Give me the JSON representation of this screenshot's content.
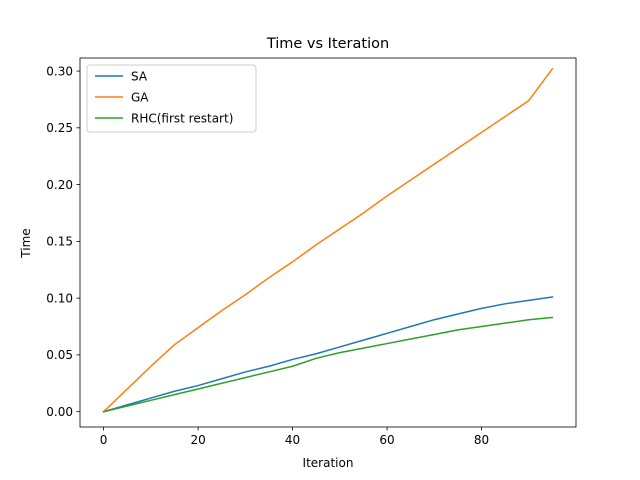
{
  "chart_data": {
    "type": "line",
    "title": "Time vs Iteration",
    "xlabel": "Iteration",
    "ylabel": "Time",
    "xlim": [
      -5,
      100
    ],
    "ylim": [
      -0.0135,
      0.3115
    ],
    "xticks": [
      0,
      20,
      40,
      60,
      80
    ],
    "yticks": [
      0.0,
      0.05,
      0.1,
      0.15,
      0.2,
      0.25,
      0.3
    ],
    "ytick_labels": [
      "0.00",
      "0.05",
      "0.10",
      "0.15",
      "0.20",
      "0.25",
      "0.30"
    ],
    "grid": false,
    "legend_position": "top-left",
    "series": [
      {
        "name": "SA",
        "color": "#1f77b4",
        "x": [
          0,
          5,
          10,
          15,
          20,
          25,
          30,
          35,
          40,
          45,
          50,
          55,
          60,
          65,
          70,
          75,
          80,
          85,
          90,
          95
        ],
        "y": [
          0.0,
          0.006,
          0.012,
          0.018,
          0.023,
          0.029,
          0.035,
          0.04,
          0.046,
          0.051,
          0.057,
          0.063,
          0.069,
          0.075,
          0.081,
          0.086,
          0.091,
          0.095,
          0.098,
          0.101
        ]
      },
      {
        "name": "GA",
        "color": "#ff7f0e",
        "x": [
          0,
          5,
          10,
          15,
          20,
          25,
          30,
          35,
          40,
          45,
          50,
          55,
          60,
          65,
          70,
          75,
          80,
          85,
          90,
          95
        ],
        "y": [
          0.0,
          0.02,
          0.04,
          0.059,
          0.074,
          0.089,
          0.103,
          0.118,
          0.132,
          0.147,
          0.161,
          0.175,
          0.19,
          0.204,
          0.218,
          0.232,
          0.246,
          0.26,
          0.274,
          0.302
        ]
      },
      {
        "name": "RHC(first restart)",
        "color": "#2ca02c",
        "x": [
          0,
          5,
          10,
          15,
          20,
          25,
          30,
          35,
          40,
          45,
          50,
          55,
          60,
          65,
          70,
          75,
          80,
          85,
          90,
          95
        ],
        "y": [
          0.0,
          0.005,
          0.01,
          0.015,
          0.02,
          0.025,
          0.03,
          0.035,
          0.04,
          0.047,
          0.052,
          0.056,
          0.06,
          0.064,
          0.068,
          0.072,
          0.075,
          0.078,
          0.081,
          0.083
        ]
      }
    ]
  }
}
